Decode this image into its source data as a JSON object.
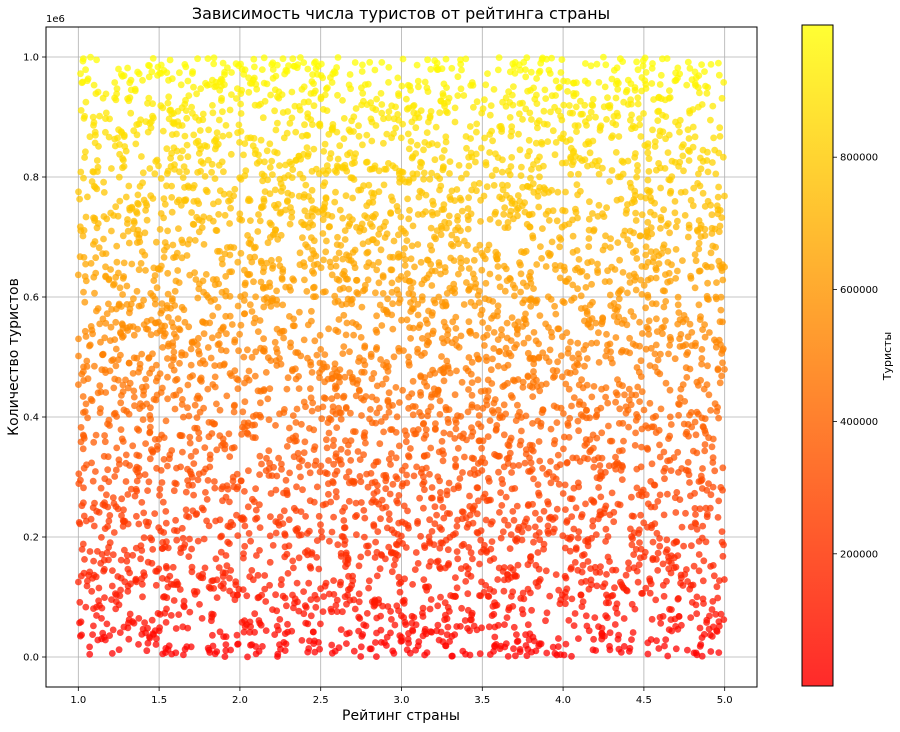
{
  "chart_data": {
    "type": "scatter",
    "title": "Зависимость числа туристов от рейтинга страны",
    "xlabel": "Рейтинг страны",
    "ylabel": "Количество туристов",
    "y_offset_label": "1e6",
    "xlim": [
      0.8,
      5.2
    ],
    "ylim": [
      -50000,
      1050000
    ],
    "x_ticks": [
      1.0,
      1.5,
      2.0,
      2.5,
      3.0,
      3.5,
      4.0,
      4.5,
      5.0
    ],
    "x_tick_labels": [
      "1.0",
      "1.5",
      "2.0",
      "2.5",
      "3.0",
      "3.5",
      "4.0",
      "4.5",
      "5.0"
    ],
    "y_ticks": [
      0,
      200000,
      400000,
      600000,
      800000,
      1000000
    ],
    "y_tick_labels": [
      "0.0",
      "0.2",
      "0.4",
      "0.6",
      "0.8",
      "1.0"
    ],
    "grid": true,
    "x_range_of_points": [
      1.0,
      5.0
    ],
    "y_range_of_points": [
      0,
      1000000
    ],
    "n_points_approx": 5000,
    "point_distribution": "uniform",
    "color_encodes": "tourists",
    "colormap": "autumn",
    "colormap_colors": [
      "#ff0000",
      "#ffff00"
    ],
    "point_alpha": 0.75,
    "colorbar": {
      "label": "Туристы",
      "range": [
        0,
        1000000
      ],
      "ticks": [
        200000,
        400000,
        600000,
        800000
      ],
      "tick_labels": [
        "200000",
        "400000",
        "600000",
        "800000"
      ],
      "placement": "right"
    }
  }
}
